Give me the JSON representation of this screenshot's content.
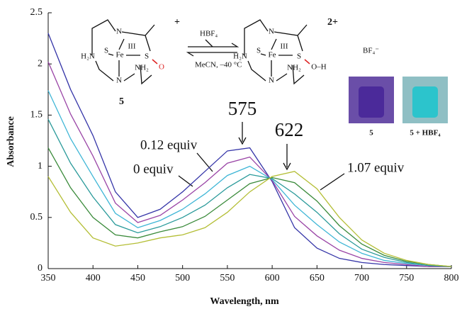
{
  "chart_data": {
    "type": "line",
    "xlabel": "Wavelength, nm",
    "ylabel": "Absorbance",
    "x": [
      350,
      375,
      400,
      425,
      450,
      475,
      500,
      525,
      550,
      575,
      600,
      625,
      650,
      675,
      700,
      725,
      750,
      775,
      800
    ],
    "series": [
      {
        "color": "#3535a8",
        "values": [
          2.3,
          1.75,
          1.3,
          0.75,
          0.5,
          0.58,
          0.75,
          0.95,
          1.15,
          1.18,
          0.85,
          0.4,
          0.2,
          0.1,
          0.06,
          0.04,
          0.03,
          0.02,
          0.02
        ]
      },
      {
        "color": "#9a45a6",
        "values": [
          2.02,
          1.51,
          1.1,
          0.64,
          0.45,
          0.52,
          0.67,
          0.84,
          1.03,
          1.09,
          0.86,
          0.51,
          0.32,
          0.18,
          0.1,
          0.06,
          0.04,
          0.02,
          0.02
        ]
      },
      {
        "color": "#3fb6d6",
        "values": [
          1.74,
          1.27,
          0.9,
          0.54,
          0.4,
          0.47,
          0.58,
          0.73,
          0.91,
          1.0,
          0.87,
          0.62,
          0.43,
          0.26,
          0.15,
          0.08,
          0.05,
          0.03,
          0.02
        ]
      },
      {
        "color": "#2a9a9a",
        "values": [
          1.46,
          1.03,
          0.7,
          0.43,
          0.35,
          0.41,
          0.5,
          0.62,
          0.79,
          0.92,
          0.88,
          0.73,
          0.55,
          0.34,
          0.19,
          0.11,
          0.06,
          0.03,
          0.02
        ]
      },
      {
        "color": "#3a8a3a",
        "values": [
          1.18,
          0.79,
          0.5,
          0.33,
          0.3,
          0.36,
          0.41,
          0.51,
          0.67,
          0.83,
          0.89,
          0.84,
          0.66,
          0.42,
          0.24,
          0.13,
          0.07,
          0.04,
          0.02
        ]
      },
      {
        "color": "#b4be35",
        "values": [
          0.9,
          0.55,
          0.3,
          0.22,
          0.25,
          0.3,
          0.33,
          0.4,
          0.55,
          0.75,
          0.9,
          0.95,
          0.78,
          0.5,
          0.28,
          0.15,
          0.08,
          0.04,
          0.02
        ]
      }
    ],
    "xlim": [
      350,
      800
    ],
    "xticks": [
      350,
      400,
      450,
      500,
      550,
      600,
      650,
      700,
      750,
      800
    ],
    "ylim": [
      0,
      2.5
    ],
    "yticks": [
      0,
      0.5,
      1,
      1.5,
      2,
      2.5
    ],
    "annotations": [
      "575",
      "622",
      "0 equiv",
      "0.12 equiv",
      "1.07 equiv"
    ]
  },
  "scheme": {
    "reactant": {
      "atoms": [
        "N",
        "S",
        "Fe",
        "III",
        "S",
        "O",
        "H₂N",
        "NH₂",
        "N"
      ],
      "charge": "+",
      "label": "5"
    },
    "product": {
      "atoms": [
        "N",
        "S",
        "Fe",
        "III",
        "S",
        "O–H",
        "H₂N",
        "NH₂",
        "N"
      ],
      "charge": "2+",
      "counterion": "BF₄⁻"
    },
    "reagent": "HBF₄",
    "conditions": "MeCN, –40 °C",
    "photos": [
      "5",
      "5 + HBF₄"
    ]
  }
}
